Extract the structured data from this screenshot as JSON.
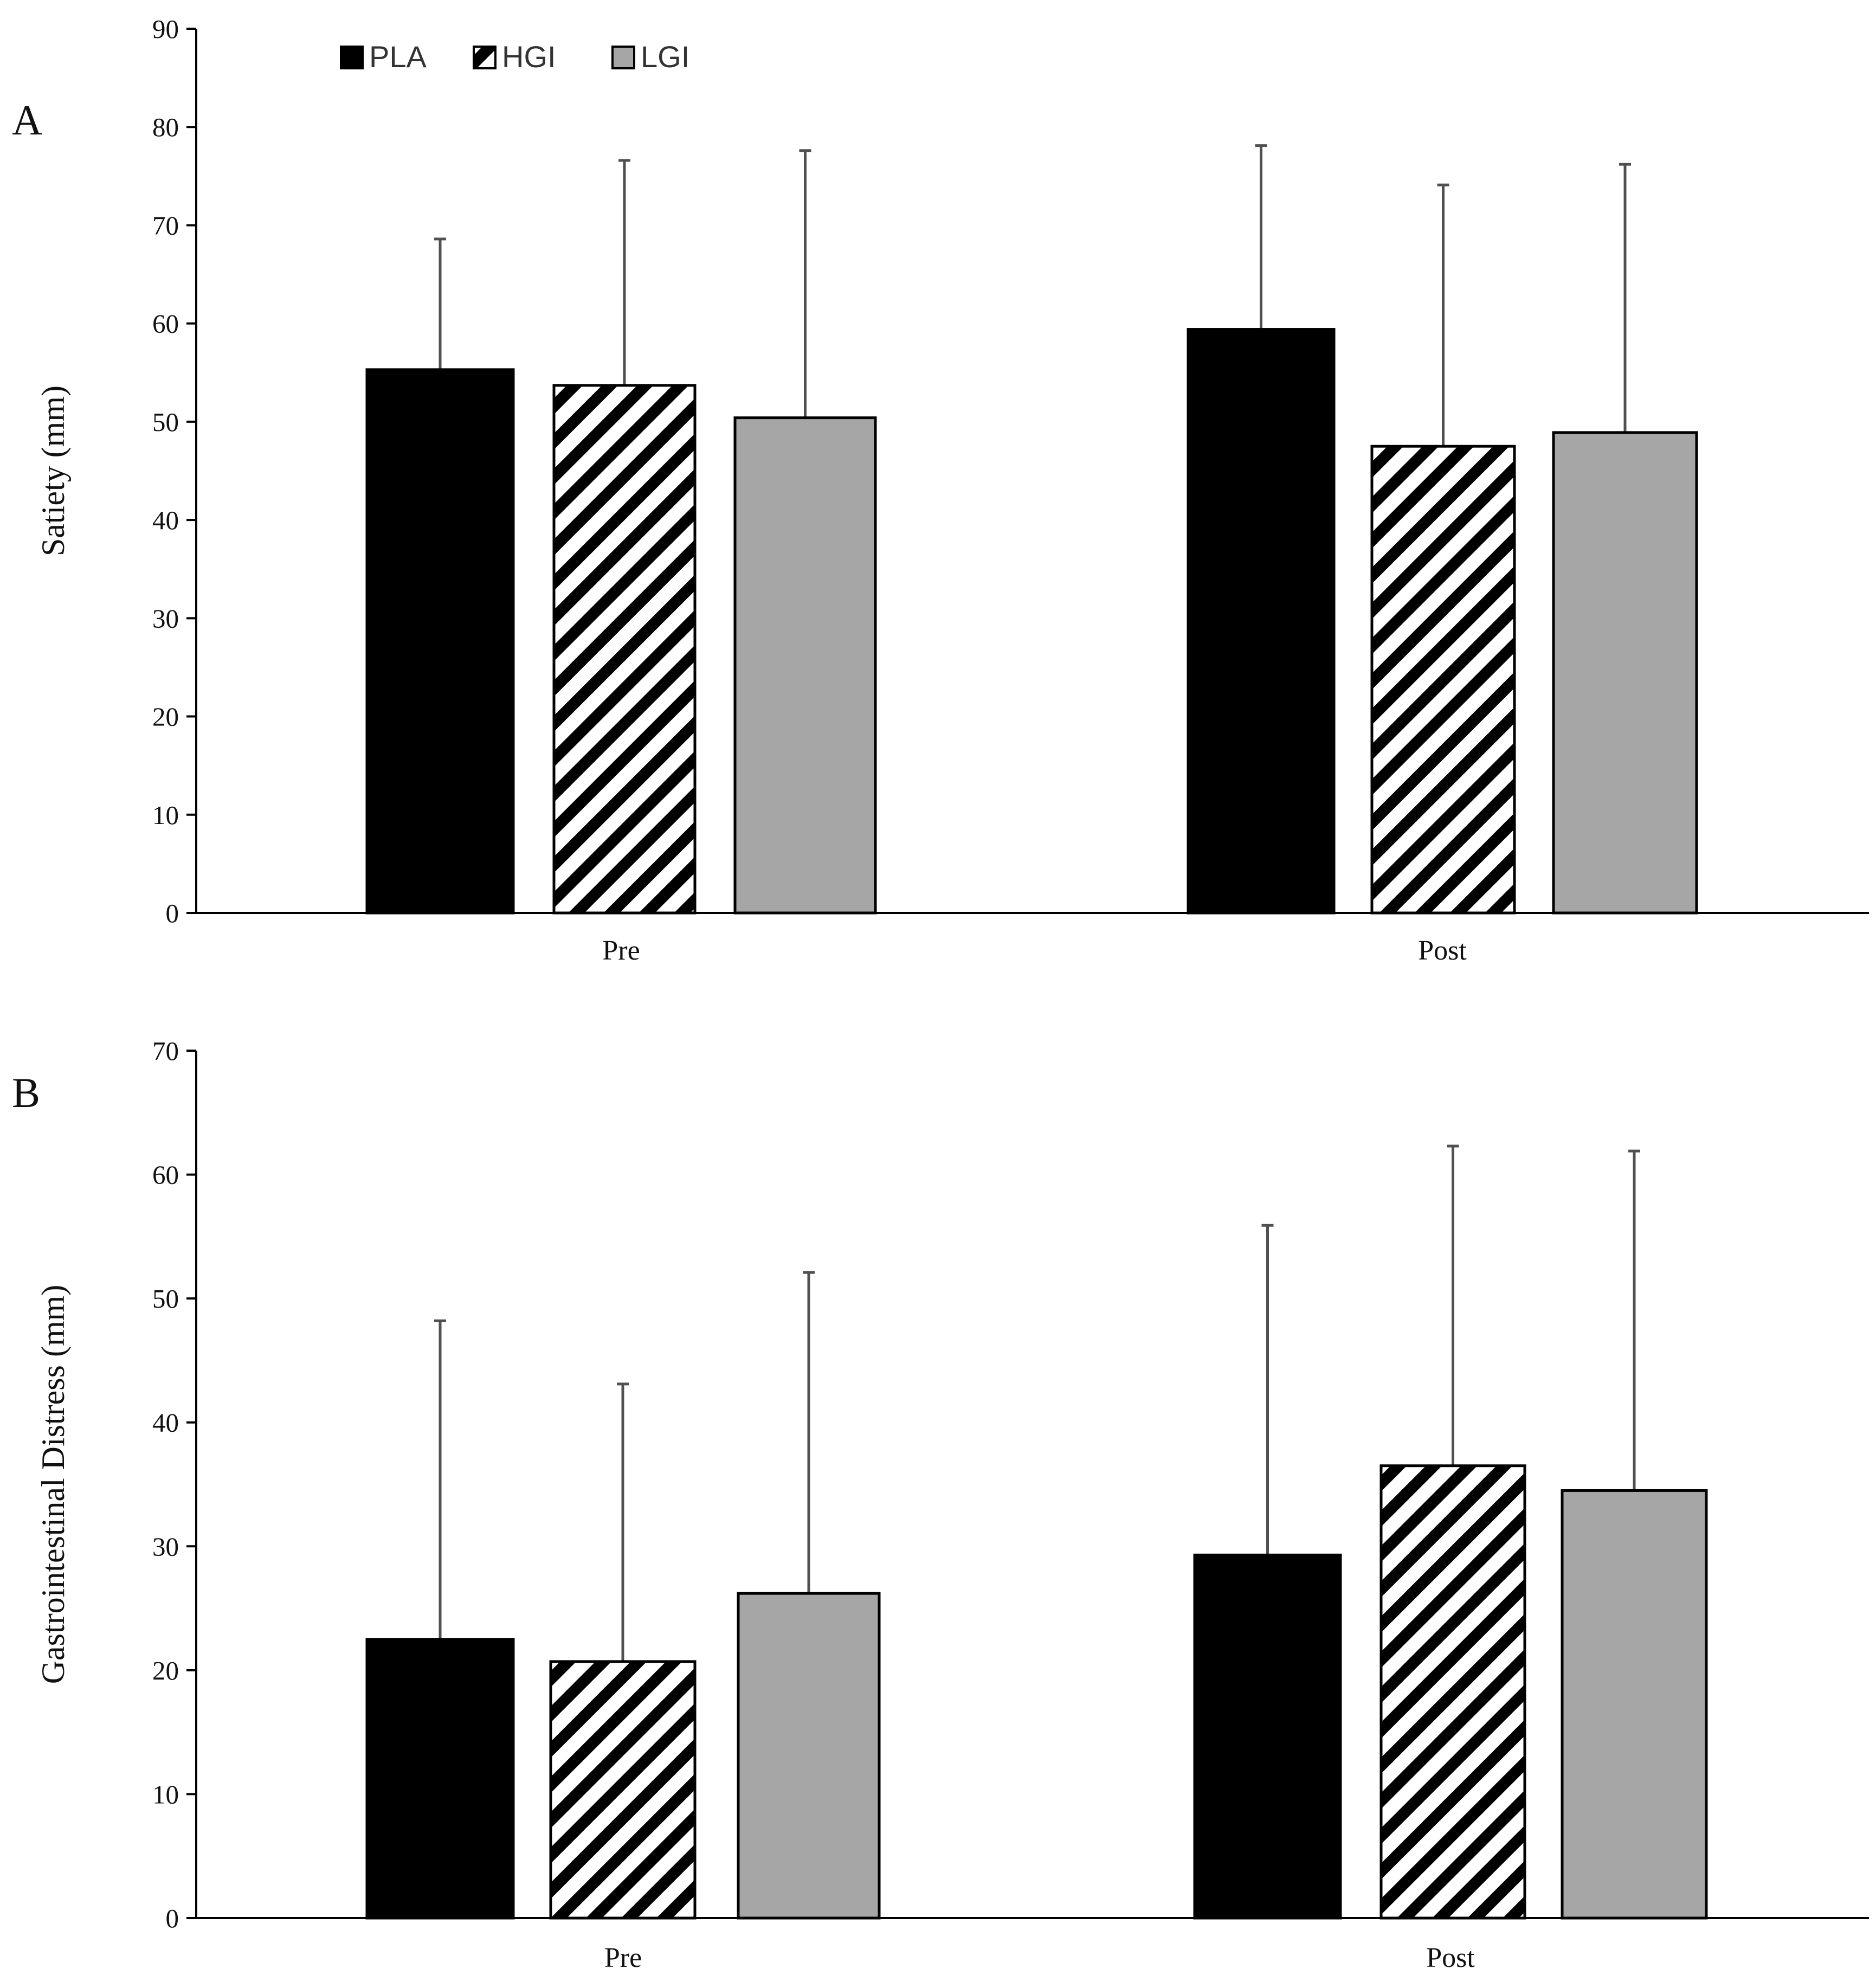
{
  "legend": [
    "PLA",
    "HGI",
    "LGI"
  ],
  "colors": {
    "PLA": "#000000",
    "HGI": "#ffffff",
    "LGI": "#a6a6a6",
    "error": "#505050",
    "axis": "#000000"
  },
  "chart_data": [
    {
      "type": "bar",
      "panel_label": "A",
      "title": "",
      "xlabel": "",
      "ylabel": "Satiety (mm)",
      "ylim": [
        0,
        90
      ],
      "yticks": [
        0,
        10,
        20,
        30,
        40,
        50,
        60,
        70,
        80,
        90
      ],
      "categories": [
        "Pre",
        "Post"
      ],
      "series": [
        {
          "name": "PLA",
          "values": [
            55.3,
            59.4
          ],
          "error_upper": [
            68.6,
            78.1
          ]
        },
        {
          "name": "HGI",
          "values": [
            53.7,
            47.5
          ],
          "error_upper": [
            76.6,
            74.1
          ]
        },
        {
          "name": "LGI",
          "values": [
            50.4,
            48.9
          ],
          "error_upper": [
            77.6,
            76.2
          ]
        }
      ],
      "legend_position": "top-left"
    },
    {
      "type": "bar",
      "panel_label": "B",
      "title": "",
      "xlabel": "",
      "ylabel": "Gastrointestinal Distress (mm)",
      "ylim": [
        0,
        70
      ],
      "yticks": [
        0,
        10,
        20,
        30,
        40,
        50,
        60,
        70
      ],
      "categories": [
        "Pre",
        "Post"
      ],
      "series": [
        {
          "name": "PLA",
          "values": [
            22.5,
            29.3
          ],
          "error_upper": [
            48.2,
            55.9
          ]
        },
        {
          "name": "HGI",
          "values": [
            20.7,
            36.5
          ],
          "error_upper": [
            43.1,
            62.3
          ]
        },
        {
          "name": "LGI",
          "values": [
            26.2,
            34.5
          ],
          "error_upper": [
            52.1,
            61.9
          ]
        }
      ]
    }
  ]
}
